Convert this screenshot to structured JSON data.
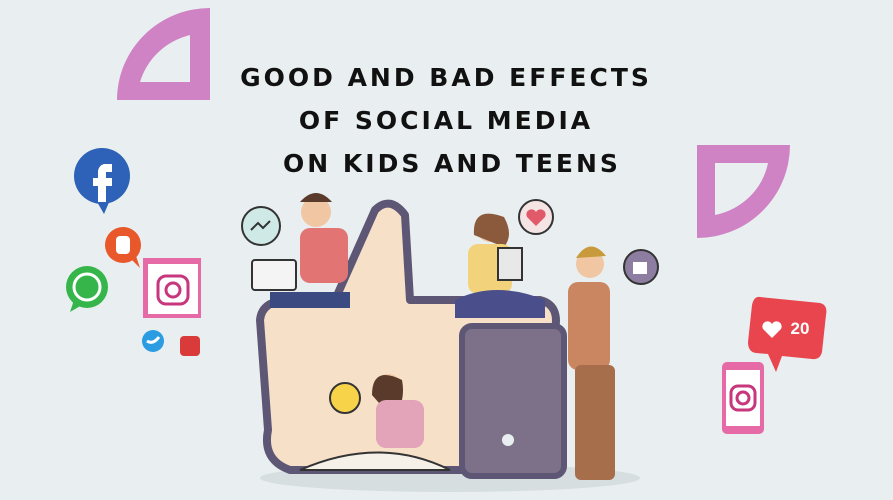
{
  "title_lines": [
    "GOOD AND BAD EFFECTS",
    "OF SOCIAL MEDIA",
    "ON KIDS AND TEENS"
  ],
  "like_badge": {
    "count": "20"
  }
}
